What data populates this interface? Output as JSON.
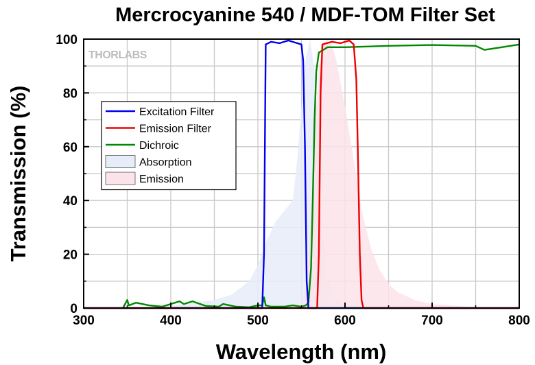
{
  "chart_data": {
    "type": "line",
    "title": "Mercrocyanine 540 / MDF-TOM Filter Set",
    "xlabel": "Wavelength (nm)",
    "ylabel": "Transmission (%)",
    "xlim": [
      300,
      800
    ],
    "ylim": [
      0,
      100
    ],
    "xticks": [
      300,
      400,
      500,
      600,
      700,
      800
    ],
    "yticks": [
      0,
      20,
      40,
      60,
      80,
      100
    ],
    "grid": true,
    "legend_position": "upper-left",
    "watermark": "THORLABS",
    "series": [
      {
        "name": "Excitation Filter",
        "color": "#0000ee",
        "kind": "line",
        "points": [
          [
            300,
            0
          ],
          [
            505,
            0
          ],
          [
            507,
            20
          ],
          [
            509,
            98
          ],
          [
            515,
            99
          ],
          [
            525,
            98.5
          ],
          [
            535,
            99.5
          ],
          [
            545,
            98.5
          ],
          [
            550,
            98
          ],
          [
            552,
            92
          ],
          [
            554,
            60
          ],
          [
            556,
            10
          ],
          [
            558,
            0
          ],
          [
            800,
            0
          ]
        ]
      },
      {
        "name": "Emission Filter",
        "color": "#ee0000",
        "kind": "line",
        "points": [
          [
            300,
            0
          ],
          [
            568,
            0
          ],
          [
            570,
            20
          ],
          [
            572,
            80
          ],
          [
            574,
            98
          ],
          [
            585,
            99
          ],
          [
            595,
            98.5
          ],
          [
            605,
            99.5
          ],
          [
            610,
            98
          ],
          [
            613,
            85
          ],
          [
            615,
            55
          ],
          [
            617,
            20
          ],
          [
            619,
            3
          ],
          [
            621,
            0
          ],
          [
            800,
            0
          ]
        ]
      },
      {
        "name": "Dichroic",
        "color": "#008800",
        "kind": "line",
        "points": [
          [
            345,
            0
          ],
          [
            350,
            3
          ],
          [
            352,
            1
          ],
          [
            360,
            2
          ],
          [
            375,
            1
          ],
          [
            390,
            0.5
          ],
          [
            410,
            2.5
          ],
          [
            415,
            1.5
          ],
          [
            425,
            2.5
          ],
          [
            440,
            0.8
          ],
          [
            455,
            0.5
          ],
          [
            460,
            1.5
          ],
          [
            475,
            0.5
          ],
          [
            490,
            0.3
          ],
          [
            500,
            1
          ],
          [
            505,
            1
          ],
          [
            507,
            4
          ],
          [
            509,
            1
          ],
          [
            515,
            0.5
          ],
          [
            530,
            0.5
          ],
          [
            540,
            1
          ],
          [
            550,
            0.5
          ],
          [
            555,
            1
          ],
          [
            558,
            2
          ],
          [
            561,
            15
          ],
          [
            563,
            40
          ],
          [
            565,
            70
          ],
          [
            567,
            88
          ],
          [
            570,
            95
          ],
          [
            580,
            97
          ],
          [
            600,
            97
          ],
          [
            650,
            97.5
          ],
          [
            700,
            97.8
          ],
          [
            750,
            97.5
          ],
          [
            760,
            96
          ],
          [
            780,
            97
          ],
          [
            800,
            98
          ]
        ]
      },
      {
        "name": "Absorption",
        "color": "#e6ecf8",
        "kind": "area",
        "points": [
          [
            360,
            0
          ],
          [
            400,
            1
          ],
          [
            430,
            2
          ],
          [
            450,
            3
          ],
          [
            470,
            5
          ],
          [
            490,
            10
          ],
          [
            500,
            16
          ],
          [
            510,
            25
          ],
          [
            520,
            32
          ],
          [
            530,
            36
          ],
          [
            540,
            40
          ],
          [
            545,
            55
          ],
          [
            550,
            75
          ],
          [
            555,
            93
          ],
          [
            560,
            100
          ],
          [
            565,
            88
          ],
          [
            570,
            55
          ],
          [
            575,
            25
          ],
          [
            580,
            10
          ],
          [
            590,
            3
          ],
          [
            600,
            1
          ],
          [
            620,
            0
          ]
        ]
      },
      {
        "name": "Emission",
        "color": "#fbe3ea",
        "kind": "area",
        "points": [
          [
            550,
            0
          ],
          [
            555,
            8
          ],
          [
            560,
            28
          ],
          [
            565,
            65
          ],
          [
            570,
            90
          ],
          [
            575,
            98
          ],
          [
            580,
            100
          ],
          [
            585,
            98
          ],
          [
            590,
            92
          ],
          [
            600,
            75
          ],
          [
            610,
            55
          ],
          [
            620,
            35
          ],
          [
            630,
            22
          ],
          [
            640,
            14
          ],
          [
            650,
            9
          ],
          [
            660,
            6
          ],
          [
            680,
            3
          ],
          [
            700,
            1.5
          ],
          [
            750,
            0.3
          ],
          [
            800,
            0
          ]
        ]
      }
    ]
  }
}
